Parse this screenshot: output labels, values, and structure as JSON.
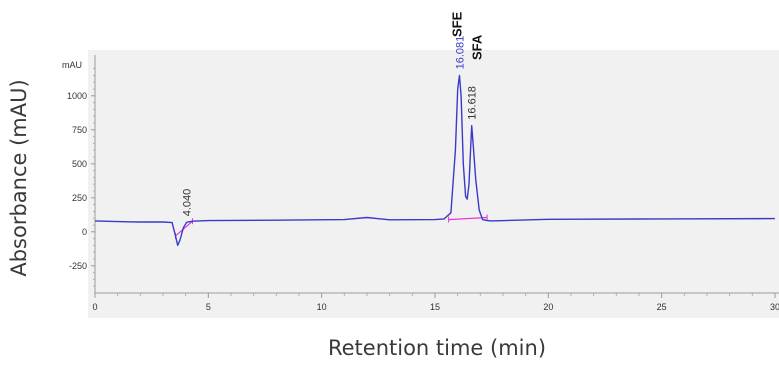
{
  "chart_data": {
    "type": "line",
    "xlabel": "Retention time (min)",
    "ylabel": "Absorbance (mAU)",
    "y_unit_label": "mAU",
    "xlim": [
      0,
      30
    ],
    "ylim": [
      -450,
      1300
    ],
    "x_ticks": [
      "0",
      "5",
      "10",
      "15",
      "20",
      "25",
      "30"
    ],
    "y_ticks": [
      "1000",
      "750",
      "500",
      "250",
      "0",
      "-250"
    ],
    "grid": false,
    "colors": {
      "signal": "#3a3ac8",
      "baseline": "#e23ad6",
      "plot_bg": "#f1f1f1",
      "frame": "#9a9a9a"
    },
    "series": [
      {
        "x": [
          0,
          1,
          2,
          3,
          3.4,
          3.55,
          3.65,
          3.75,
          3.9,
          4.04,
          4.3,
          5,
          8,
          11,
          12,
          13,
          15,
          15.4,
          15.7,
          15.9,
          16.0,
          16.08,
          16.15,
          16.25,
          16.35,
          16.42,
          16.5,
          16.6,
          16.618,
          16.68,
          16.8,
          16.95,
          17.1,
          17.3,
          17.5,
          20,
          25,
          30
        ],
        "values": [
          80,
          75,
          72,
          72,
          68,
          -30,
          -100,
          -60,
          30,
          70,
          78,
          82,
          85,
          90,
          105,
          88,
          90,
          95,
          140,
          600,
          1050,
          1150,
          1000,
          500,
          260,
          240,
          350,
          720,
          780,
          650,
          380,
          160,
          90,
          82,
          80,
          92,
          95,
          97
        ]
      }
    ],
    "peaks": [
      {
        "rt": "4.040",
        "x": 4.04,
        "y": 70
      },
      {
        "rt": "16.081",
        "name": "SFE",
        "x": 16.081,
        "y": 1150
      },
      {
        "rt": "16.618",
        "name": "SFA",
        "x": 16.618,
        "y": 780
      }
    ],
    "baselines": [
      {
        "x": [
          3.55,
          4.3
        ],
        "values": [
          -30,
          78
        ]
      },
      {
        "x": [
          15.6,
          17.3
        ],
        "values": [
          90,
          105
        ]
      }
    ]
  }
}
